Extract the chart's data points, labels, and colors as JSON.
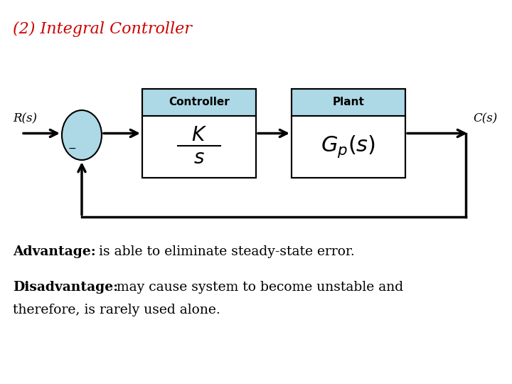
{
  "title": "(2) Integral Controller",
  "title_color": "#cc0000",
  "title_fontsize": 16,
  "bg_color": "#ffffff",
  "controller_label": "Controller",
  "plant_label": "Plant",
  "input_label": "R(s)",
  "output_label": "C(s)",
  "box_fill_top": "#add8e6",
  "box_fill_bottom": "#ffffff",
  "box_edge": "#000000",
  "advantage_bold": "Advantage:",
  "advantage_text": " is able to eliminate steady-state error.",
  "disadvantage_bold": "Disadvantage:",
  "disadvantage_text1": " may cause system to become unstable and",
  "disadvantage_text2": "therefore, is rarely used alone.",
  "text_fontsize": 13.5
}
